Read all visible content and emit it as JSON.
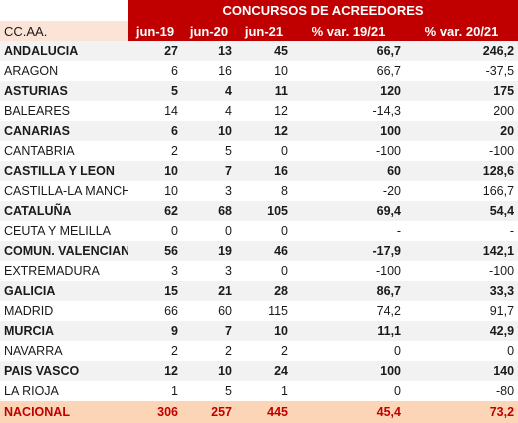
{
  "header": {
    "group_title": "CONCURSOS DE ACREEDORES",
    "row_label": "CC.AA.",
    "columns": [
      "jun-19",
      "jun-20",
      "jun-21",
      "% var. 19/21",
      "% var. 20/21"
    ]
  },
  "rows": [
    {
      "region": "ANDALUCIA",
      "bold": true,
      "values": [
        "27",
        "13",
        "45",
        "66,7",
        "246,2"
      ]
    },
    {
      "region": "ARAGON",
      "bold": false,
      "values": [
        "6",
        "16",
        "10",
        "66,7",
        "-37,5"
      ]
    },
    {
      "region": "ASTURIAS",
      "bold": true,
      "values": [
        "5",
        "4",
        "11",
        "120",
        "175"
      ]
    },
    {
      "region": "BALEARES",
      "bold": false,
      "values": [
        "14",
        "4",
        "12",
        "-14,3",
        "200"
      ]
    },
    {
      "region": "CANARIAS",
      "bold": true,
      "values": [
        "6",
        "10",
        "12",
        "100",
        "20"
      ]
    },
    {
      "region": "CANTABRIA",
      "bold": false,
      "values": [
        "2",
        "5",
        "0",
        "-100",
        "-100"
      ]
    },
    {
      "region": "CASTILLA Y LEON",
      "bold": true,
      "values": [
        "10",
        "7",
        "16",
        "60",
        "128,6"
      ]
    },
    {
      "region": "CASTILLA-LA MANCHA",
      "bold": false,
      "values": [
        "10",
        "3",
        "8",
        "-20",
        "166,7"
      ]
    },
    {
      "region": "CATALUÑA",
      "bold": true,
      "values": [
        "62",
        "68",
        "105",
        "69,4",
        "54,4"
      ]
    },
    {
      "region": "CEUTA Y MELILLA",
      "bold": false,
      "values": [
        "0",
        "0",
        "0",
        "-",
        "-"
      ]
    },
    {
      "region": "COMUN. VALENCIANA",
      "bold": true,
      "values": [
        "56",
        "19",
        "46",
        "-17,9",
        "142,1"
      ]
    },
    {
      "region": "EXTREMADURA",
      "bold": false,
      "values": [
        "3",
        "3",
        "0",
        "-100",
        "-100"
      ]
    },
    {
      "region": "GALICIA",
      "bold": true,
      "values": [
        "15",
        "21",
        "28",
        "86,7",
        "33,3"
      ]
    },
    {
      "region": "MADRID",
      "bold": false,
      "values": [
        "66",
        "60",
        "115",
        "74,2",
        "91,7"
      ]
    },
    {
      "region": "MURCIA",
      "bold": true,
      "values": [
        "9",
        "7",
        "10",
        "11,1",
        "42,9"
      ]
    },
    {
      "region": "NAVARRA",
      "bold": false,
      "values": [
        "2",
        "2",
        "2",
        "0",
        "0"
      ]
    },
    {
      "region": "PAIS VASCO",
      "bold": true,
      "values": [
        "12",
        "10",
        "24",
        "100",
        "140"
      ]
    },
    {
      "region": "LA RIOJA",
      "bold": false,
      "values": [
        "1",
        "5",
        "1",
        "0",
        "-80"
      ]
    }
  ],
  "total": {
    "region": "NACIONAL",
    "values": [
      "306",
      "257",
      "445",
      "45,4",
      "73,2"
    ]
  },
  "colors": {
    "header_red": "#c00000",
    "label_peach": "#fbe3d6",
    "total_peach": "#fbd5b5",
    "stripe_grey": "#f2f2f2"
  }
}
